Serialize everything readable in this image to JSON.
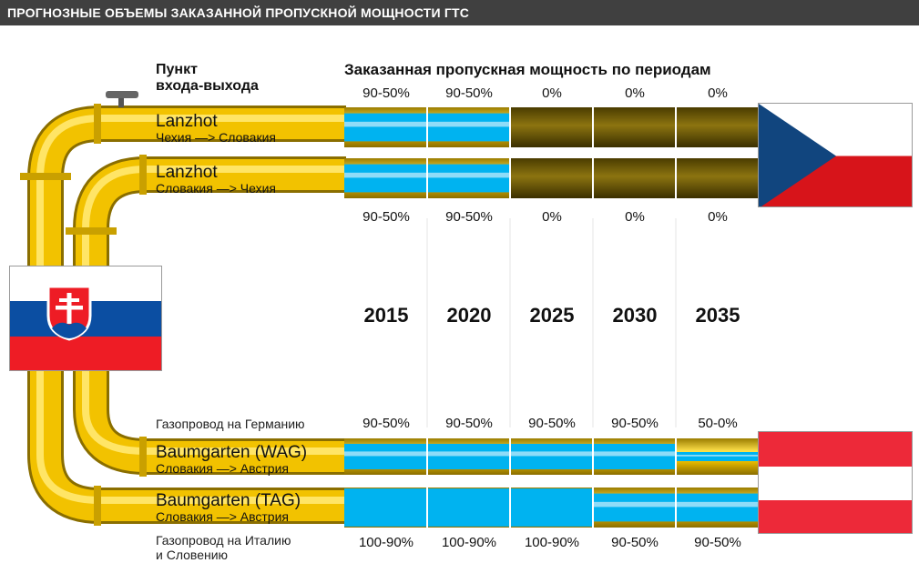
{
  "header": {
    "title": "ПРОГНОЗНЫЕ ОБЪЕМЫ ЗАКАЗАННОЙ ПРОПУСКНОЙ МОЩНОСТИ ГТС"
  },
  "columns": {
    "point_label_line1": "Пункт",
    "point_label_line2": "входа-выхода",
    "periods_label": "Заказанная пропускная мощность по периодам"
  },
  "years": [
    "2015",
    "2020",
    "2025",
    "2030",
    "2035"
  ],
  "pipes": [
    {
      "name": "Lanzhot",
      "direction": "Чехия —> Словакия",
      "values": [
        "90-50%",
        "90-50%",
        "0%",
        "0%",
        "0%"
      ],
      "levels": [
        0.7,
        0.7,
        0,
        0,
        0
      ]
    },
    {
      "name": "Lanzhot",
      "direction": "Словакия —> Чехия",
      "values": [
        "90-50%",
        "90-50%",
        "0%",
        "0%",
        "0%"
      ],
      "levels": [
        0.7,
        0.7,
        0,
        0,
        0
      ]
    },
    {
      "name": "Baumgarten (WAG)",
      "direction": "Словакия —> Австрия",
      "note": "Газопровод на Германию",
      "values": [
        "90-50%",
        "90-50%",
        "90-50%",
        "90-50%",
        "50-0%"
      ],
      "levels": [
        0.7,
        0.7,
        0.7,
        0.7,
        0.25
      ]
    },
    {
      "name": "Baumgarten (TAG)",
      "direction": "Словакия —> Австрия",
      "note_lines": [
        "Газопровод на Италию",
        "и Словению"
      ],
      "values": [
        "100-90%",
        "100-90%",
        "100-90%",
        "90-50%",
        "90-50%"
      ],
      "levels": [
        0.95,
        0.95,
        0.95,
        0.7,
        0.7
      ]
    }
  ],
  "flags": {
    "slovakia": "slovakia-flag",
    "czech": "czech-flag",
    "austria": "austria-flag"
  },
  "colors": {
    "pipe": "#f2c200",
    "pipe_dark": "#6e5a00",
    "gas": "#00b3f0",
    "gas_light": "#8fdcf8",
    "header": "#404040"
  }
}
